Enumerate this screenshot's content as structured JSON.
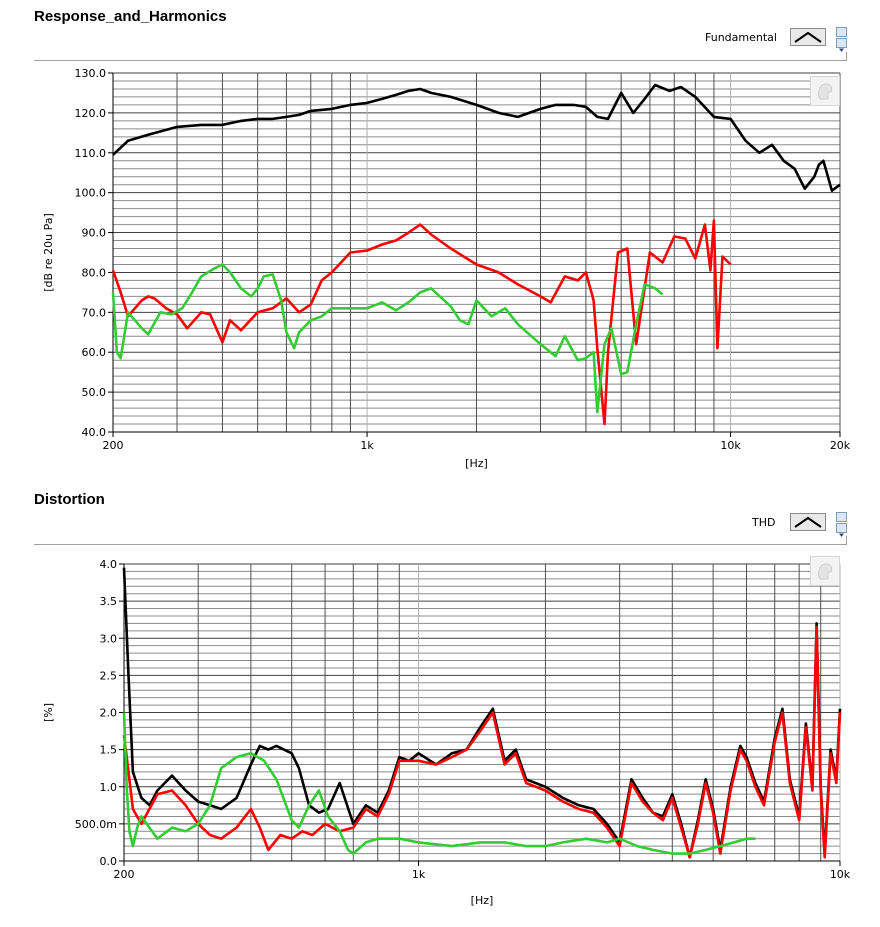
{
  "panels": [
    {
      "title": "Response_and_Harmonics",
      "legend_label": "Fundamental"
    },
    {
      "title": "Distortion",
      "legend_label": "THD"
    }
  ],
  "icons": {
    "legend_swatch": "line-style-swatch-icon",
    "spin": "up-down-spinner-icon",
    "graph_tool": "graph-palette-icon"
  },
  "chart_data": [
    {
      "type": "line",
      "title": "Response_and_Harmonics",
      "xlabel": "[Hz]",
      "ylabel": "[dB re 20u Pa]",
      "xscale": "log",
      "xlim": [
        200,
        20000
      ],
      "ylim": [
        40,
        130
      ],
      "grid": true,
      "x_tick_labels": [
        "200",
        "1k",
        "10k",
        "20k"
      ],
      "x_tick_values": [
        200,
        1000,
        10000,
        20000
      ],
      "y_tick_labels": [
        "40.0",
        "50.0",
        "60.0",
        "70.0",
        "80.0",
        "90.0",
        "100.0",
        "110.0",
        "120.0",
        "130.0"
      ],
      "y_tick_values": [
        40,
        50,
        60,
        70,
        80,
        90,
        100,
        110,
        120,
        130
      ],
      "series": [
        {
          "name": "Fundamental",
          "color": "#000000",
          "x": [
            200,
            220,
            250,
            300,
            350,
            400,
            450,
            500,
            550,
            600,
            650,
            700,
            800,
            900,
            1000,
            1100,
            1200,
            1300,
            1400,
            1500,
            1700,
            2000,
            2300,
            2600,
            3000,
            3300,
            3700,
            4000,
            4300,
            4600,
            5000,
            5400,
            5800,
            6200,
            6800,
            7300,
            8000,
            9000,
            10000,
            11000,
            12000,
            13000,
            14000,
            15000,
            16000,
            17000,
            17500,
            18000,
            19000,
            20000
          ],
          "values": [
            109.5,
            113,
            114.5,
            116.5,
            117,
            117,
            118,
            118.5,
            118.5,
            119,
            119.5,
            120.5,
            121,
            122,
            122.5,
            123.5,
            124.5,
            125.5,
            126,
            125,
            124,
            122,
            120,
            119,
            121,
            122,
            122,
            121.5,
            119,
            118.5,
            125,
            120,
            123.5,
            127,
            125.5,
            126.5,
            124,
            119,
            118.5,
            113,
            110,
            112,
            108,
            106,
            101,
            104,
            107,
            108,
            100.5,
            102
          ]
        },
        {
          "name": "",
          "color": "#ff0000",
          "x": [
            200,
            210,
            220,
            240,
            250,
            260,
            280,
            300,
            320,
            350,
            370,
            400,
            420,
            450,
            500,
            550,
            600,
            650,
            700,
            750,
            800,
            900,
            1000,
            1100,
            1200,
            1300,
            1400,
            1500,
            1700,
            2000,
            2300,
            2600,
            3000,
            3200,
            3500,
            3800,
            4000,
            4200,
            4300,
            4500,
            4600,
            4900,
            5200,
            5500,
            6000,
            6500,
            7000,
            7500,
            8000,
            8500,
            8800,
            9000,
            9200,
            9500,
            10000
          ],
          "values": [
            80.5,
            75,
            69,
            73,
            74,
            73.5,
            71,
            69.5,
            66,
            70,
            69.5,
            62.5,
            68,
            65.5,
            70,
            71,
            73.5,
            70,
            72,
            78,
            80,
            85,
            85.5,
            87,
            88,
            90,
            92,
            89.5,
            86,
            82,
            80,
            77,
            74,
            72.5,
            79,
            78,
            80,
            73,
            61,
            42,
            60,
            85,
            86,
            62,
            85,
            82.5,
            89,
            88.5,
            83.5,
            92,
            80.5,
            93,
            61,
            84,
            82
          ]
        },
        {
          "name": "",
          "color": "#33cc33",
          "x": [
            200,
            205,
            210,
            220,
            240,
            250,
            270,
            290,
            310,
            330,
            350,
            380,
            400,
            420,
            450,
            480,
            500,
            520,
            550,
            580,
            600,
            630,
            650,
            700,
            750,
            800,
            900,
            1000,
            1100,
            1200,
            1300,
            1400,
            1500,
            1700,
            1800,
            1900,
            2000,
            2200,
            2400,
            2600,
            3000,
            3300,
            3500,
            3800,
            4000,
            4200,
            4300,
            4500,
            4700,
            5000,
            5200,
            5500,
            5800,
            6200,
            6500
          ],
          "values": [
            75,
            60,
            58.5,
            70,
            66,
            64.5,
            70,
            69.5,
            71,
            75,
            79,
            81,
            82,
            80,
            76,
            74,
            76,
            79,
            79.5,
            73,
            65,
            61,
            65,
            68,
            69,
            71,
            71,
            71,
            72.5,
            70.5,
            72.5,
            75,
            76,
            71.5,
            68,
            67,
            73,
            69,
            71,
            67,
            62,
            59,
            64,
            58,
            58.5,
            60,
            45,
            62,
            66,
            54.5,
            55,
            67,
            77,
            76,
            74.5
          ]
        }
      ]
    },
    {
      "type": "line",
      "title": "Distortion",
      "xlabel": "[Hz]",
      "ylabel": "[%]",
      "xscale": "log",
      "xlim": [
        200,
        10000
      ],
      "ylim": [
        0,
        4
      ],
      "grid": true,
      "x_tick_labels": [
        "200",
        "1k",
        "10k"
      ],
      "x_tick_values": [
        200,
        1000,
        10000
      ],
      "y_tick_labels": [
        "0.0",
        "500.0m",
        "1.0",
        "1.5",
        "2.0",
        "2.5",
        "3.0",
        "3.5",
        "4.0"
      ],
      "y_tick_values": [
        0,
        0.5,
        1,
        1.5,
        2,
        2.5,
        3,
        3.5,
        4
      ],
      "series": [
        {
          "name": "THD",
          "color": "#000000",
          "x": [
            200,
            205,
            210,
            220,
            230,
            240,
            260,
            280,
            300,
            320,
            340,
            370,
            400,
            420,
            440,
            460,
            500,
            520,
            550,
            580,
            610,
            650,
            700,
            750,
            800,
            850,
            900,
            950,
            1000,
            1100,
            1200,
            1300,
            1400,
            1500,
            1600,
            1700,
            1800,
            2000,
            2200,
            2400,
            2600,
            2800,
            3000,
            3200,
            3400,
            3600,
            3800,
            4000,
            4200,
            4400,
            4600,
            4800,
            5000,
            5200,
            5500,
            5800,
            6000,
            6300,
            6600,
            7000,
            7300,
            7600,
            8000,
            8300,
            8600,
            8800,
            9000,
            9200,
            9500,
            9800,
            10000
          ],
          "values": [
            3.95,
            2.5,
            1.2,
            0.85,
            0.75,
            0.95,
            1.15,
            0.95,
            0.8,
            0.75,
            0.7,
            0.85,
            1.3,
            1.55,
            1.5,
            1.55,
            1.45,
            1.25,
            0.75,
            0.65,
            0.7,
            1.05,
            0.5,
            0.75,
            0.65,
            0.95,
            1.4,
            1.35,
            1.45,
            1.3,
            1.45,
            1.5,
            1.8,
            2.05,
            1.35,
            1.5,
            1.1,
            1.0,
            0.85,
            0.75,
            0.7,
            0.5,
            0.25,
            1.1,
            0.85,
            0.65,
            0.6,
            0.9,
            0.5,
            0.05,
            0.55,
            1.1,
            0.7,
            0.15,
            1.0,
            1.55,
            1.4,
            1.05,
            0.8,
            1.65,
            2.05,
            1.1,
            0.6,
            1.85,
            1.0,
            3.2,
            1.0,
            0.1,
            1.5,
            1.1,
            2.05
          ]
        },
        {
          "name": "",
          "color": "#ff0000",
          "x": [
            200,
            205,
            210,
            220,
            240,
            260,
            280,
            300,
            320,
            340,
            370,
            400,
            420,
            440,
            470,
            500,
            530,
            560,
            600,
            650,
            700,
            750,
            800,
            850,
            900,
            1000,
            1100,
            1200,
            1300,
            1400,
            1500,
            1600,
            1700,
            1800,
            2000,
            2200,
            2400,
            2600,
            2800,
            3000,
            3200,
            3400,
            3600,
            3800,
            4000,
            4200,
            4400,
            4600,
            4800,
            5000,
            5200,
            5500,
            5800,
            6000,
            6300,
            6600,
            7000,
            7300,
            7600,
            8000,
            8300,
            8600,
            8800,
            9000,
            9200,
            9500,
            9800,
            10000
          ],
          "values": [
            1.7,
            1.2,
            0.7,
            0.5,
            0.9,
            0.95,
            0.75,
            0.5,
            0.35,
            0.3,
            0.45,
            0.7,
            0.45,
            0.15,
            0.35,
            0.3,
            0.4,
            0.35,
            0.5,
            0.4,
            0.45,
            0.7,
            0.6,
            0.9,
            1.35,
            1.35,
            1.3,
            1.4,
            1.5,
            1.75,
            2.0,
            1.3,
            1.45,
            1.05,
            0.95,
            0.8,
            0.7,
            0.65,
            0.45,
            0.2,
            1.05,
            0.8,
            0.65,
            0.55,
            0.85,
            0.45,
            0.05,
            0.5,
            1.05,
            0.65,
            0.1,
            0.95,
            1.5,
            1.35,
            1.0,
            0.75,
            1.6,
            2.0,
            1.05,
            0.55,
            1.8,
            0.95,
            3.15,
            0.95,
            0.05,
            1.45,
            1.05,
            2.0
          ]
        },
        {
          "name": "",
          "color": "#33cc33",
          "x": [
            200,
            203,
            206,
            210,
            215,
            220,
            240,
            260,
            280,
            300,
            320,
            340,
            370,
            400,
            430,
            460,
            500,
            520,
            550,
            580,
            610,
            650,
            680,
            700,
            750,
            800,
            900,
            1000,
            1200,
            1400,
            1600,
            1800,
            2000,
            2200,
            2500,
            2800,
            3000,
            3300,
            3600,
            4000,
            4400,
            4800,
            5200,
            5600,
            6000,
            6300
          ],
          "values": [
            2.0,
            1.0,
            0.4,
            0.2,
            0.45,
            0.6,
            0.3,
            0.45,
            0.4,
            0.5,
            0.75,
            1.25,
            1.4,
            1.45,
            1.35,
            1.1,
            0.55,
            0.45,
            0.75,
            0.95,
            0.6,
            0.4,
            0.15,
            0.1,
            0.25,
            0.3,
            0.3,
            0.25,
            0.2,
            0.25,
            0.25,
            0.2,
            0.2,
            0.25,
            0.3,
            0.25,
            0.3,
            0.2,
            0.15,
            0.1,
            0.1,
            0.15,
            0.2,
            0.25,
            0.3,
            0.3
          ]
        }
      ]
    }
  ]
}
